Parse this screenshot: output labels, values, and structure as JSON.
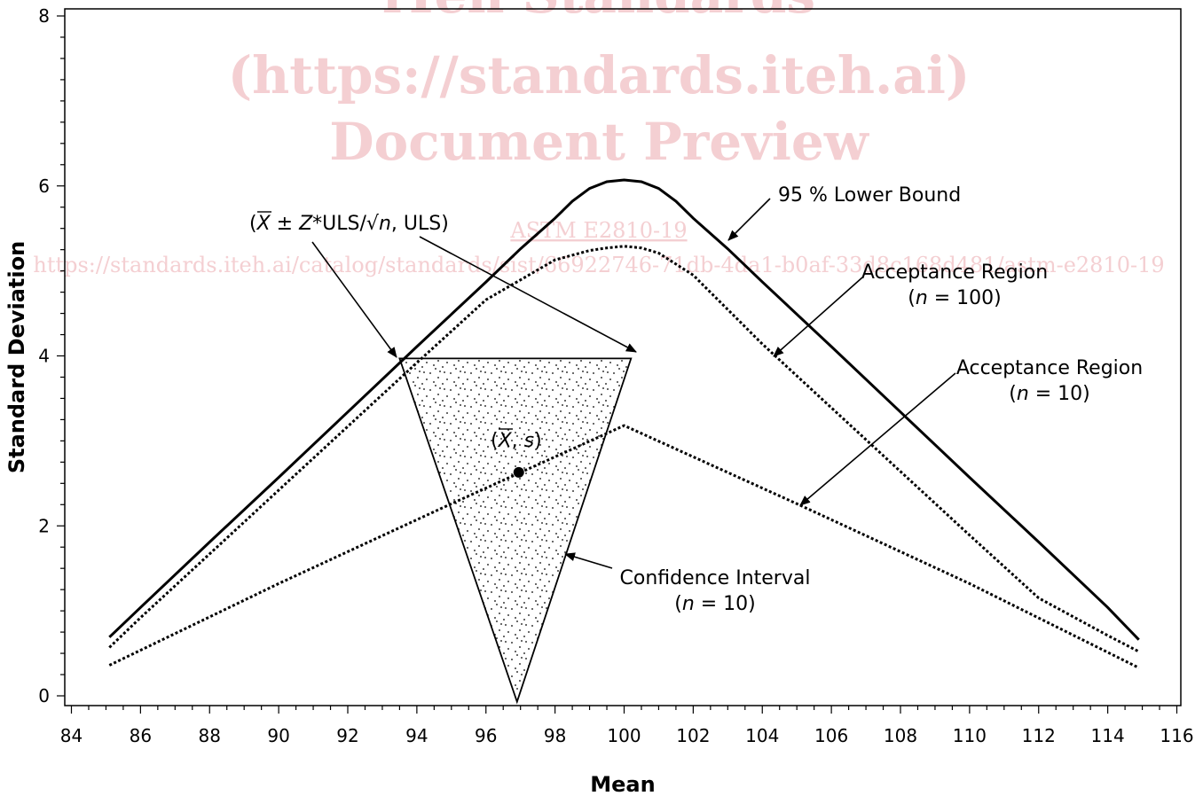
{
  "watermark": {
    "line1": "iTeh Standards",
    "line2": "(https://standards.iteh.ai)",
    "line3": "Document Preview",
    "code": "ASTM E2810-19",
    "url": "https://standards.iteh.ai/catalog/standards/sist/66922746-71db-4da1-b0af-33d8c168d481/astm-e2810-19"
  },
  "colors": {
    "line": "#000000",
    "watermark": "#f4cfd2"
  },
  "chart_data": {
    "type": "line",
    "title": "",
    "xlabel": "Mean",
    "ylabel": "Standard Deviation",
    "xlim": [
      84,
      116
    ],
    "ylim": [
      0,
      8
    ],
    "xticks": [
      84,
      86,
      88,
      90,
      92,
      94,
      96,
      98,
      100,
      102,
      104,
      106,
      108,
      110,
      112,
      114,
      116
    ],
    "yticks": [
      0,
      2,
      4,
      6,
      8
    ],
    "grid": false,
    "legend": "none",
    "series": [
      {
        "key": "lower_bound",
        "style": "solid",
        "x": [
          85.1,
          86,
          88,
          90,
          92,
          94,
          96,
          97,
          98,
          98.5,
          99,
          99.5,
          100,
          100.5,
          101,
          101.5,
          102,
          103,
          104,
          106,
          108,
          110,
          112,
          114,
          114.9
        ],
        "y": [
          0.69,
          1.04,
          1.81,
          2.57,
          3.34,
          4.11,
          4.87,
          5.26,
          5.62,
          5.82,
          5.97,
          6.05,
          6.07,
          6.05,
          5.97,
          5.82,
          5.62,
          5.26,
          4.87,
          4.11,
          3.34,
          2.57,
          1.81,
          1.04,
          0.66
        ]
      },
      {
        "key": "acceptance_n100",
        "style": "dotted",
        "x": [
          85.1,
          86,
          88,
          90,
          92,
          94,
          96,
          98,
          99,
          99.5,
          100,
          100.5,
          101,
          102,
          104,
          106,
          108,
          110,
          112,
          114,
          114.9
        ],
        "y": [
          0.57,
          0.92,
          1.67,
          2.42,
          3.17,
          3.92,
          4.66,
          5.13,
          5.24,
          5.27,
          5.29,
          5.27,
          5.21,
          4.95,
          4.14,
          3.39,
          2.64,
          1.89,
          1.15,
          0.71,
          0.52
        ]
      },
      {
        "key": "acceptance_n10",
        "style": "dotted",
        "x": [
          85.1,
          90,
          95,
          100,
          105,
          110,
          114.9
        ],
        "y": [
          0.36,
          1.32,
          2.26,
          3.18,
          2.26,
          1.32,
          0.33
        ]
      }
    ],
    "confidence_interval": {
      "vertices": [
        [
          93.5,
          3.97
        ],
        [
          100.2,
          3.97
        ],
        [
          96.9,
          -0.07
        ]
      ],
      "point": [
        96.95,
        2.63
      ]
    },
    "annotations": {
      "lower_bound": "95 % Lower Bound",
      "acc100_line1": "Acceptance Region",
      "acc100_line2_pre": "(",
      "acc100_line2_n": "n",
      "acc100_line2_post": " = 100)",
      "acc10_line1": "Acceptance Region",
      "acc10_line2_pre": "(",
      "acc10_line2_n": "n",
      "acc10_line2_post": " = 10)",
      "ci_line1": "Confidence Interval",
      "ci_line2_pre": "(",
      "ci_line2_n": "n",
      "ci_line2_post": " = 10)",
      "formula_open": "(",
      "formula_xbar": "X",
      "formula_pm": " ± ",
      "formula_z": "Z",
      "formula_mid": "*ULS/√",
      "formula_n": "n",
      "formula_end": ", ULS)",
      "point_open": "(",
      "point_xbar": "X",
      "point_comma": ", ",
      "point_s": "s",
      "point_close": ")"
    }
  }
}
